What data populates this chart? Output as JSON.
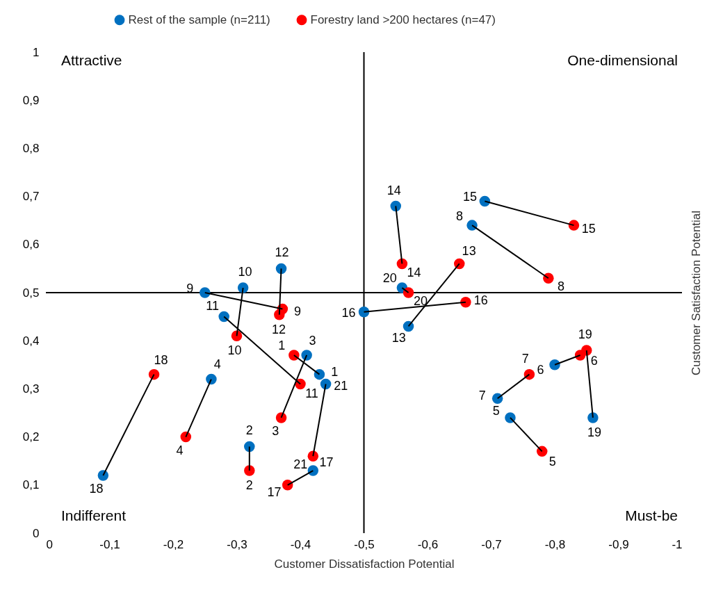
{
  "chart_data": {
    "type": "scatter",
    "xlabel": "Customer Dissatisfaction Potential",
    "ylabel": "Customer Satisfaction Potential",
    "xlim": [
      0,
      -1
    ],
    "ylim": [
      0,
      1
    ],
    "xticks": [
      0,
      {
        "value": -0.1,
        "label": "-0,1"
      },
      {
        "value": -0.2,
        "label": "-0,2"
      },
      {
        "value": -0.3,
        "label": "-0,3"
      },
      {
        "value": -0.4,
        "label": "-0,4"
      },
      {
        "value": -0.5,
        "label": "-0,5"
      },
      {
        "value": -0.6,
        "label": "-0,6"
      },
      {
        "value": -0.7,
        "label": "-0,7"
      },
      {
        "value": -0.8,
        "label": "-0,8"
      },
      {
        "value": -0.9,
        "label": "-0,9"
      },
      -1
    ],
    "yticks": [
      0,
      {
        "value": 0.1,
        "label": "0,1"
      },
      {
        "value": 0.2,
        "label": "0,2"
      },
      {
        "value": 0.3,
        "label": "0,3"
      },
      {
        "value": 0.4,
        "label": "0,4"
      },
      {
        "value": 0.5,
        "label": "0,5"
      },
      {
        "value": 0.6,
        "label": "0,6"
      },
      {
        "value": 0.7,
        "label": "0,7"
      },
      {
        "value": 0.8,
        "label": "0,8"
      },
      {
        "value": 0.9,
        "label": "0,9"
      },
      1
    ],
    "legend": "top",
    "marker": "circle",
    "annotations": [
      "Attractive",
      "One-dimensional",
      "Indifferent",
      "Must-be",
      {
        "text": "1",
        "x": -0.43,
        "y": 0.33
      },
      {
        "text": "2",
        "x": -0.32,
        "y": 0.18
      },
      {
        "text": "3",
        "x": -0.41,
        "y": 0.37
      },
      {
        "text": "4",
        "x": -0.26,
        "y": 0.32
      },
      {
        "text": "5",
        "x": -0.73,
        "y": 0.24
      },
      {
        "text": "6",
        "x": -0.8,
        "y": 0.35
      },
      {
        "text": "7",
        "x": -0.71,
        "y": 0.28
      },
      {
        "text": "8",
        "x": -0.67,
        "y": 0.64
      },
      {
        "text": "9",
        "x": -0.25,
        "y": 0.5
      },
      {
        "text": "10",
        "x": -0.31,
        "y": 0.51
      },
      {
        "text": "11",
        "x": -0.28,
        "y": 0.45
      },
      {
        "text": "12",
        "x": -0.37,
        "y": 0.55
      },
      {
        "text": "13",
        "x": -0.57,
        "y": 0.43
      },
      {
        "text": "14",
        "x": -0.55,
        "y": 0.68
      },
      {
        "text": "15",
        "x": -0.69,
        "y": 0.69
      },
      {
        "text": "16",
        "x": -0.5,
        "y": 0.46
      },
      {
        "text": "17",
        "x": -0.42,
        "y": 0.13
      },
      {
        "text": "18",
        "x": -0.09,
        "y": 0.12
      },
      {
        "text": "19",
        "x": -0.86,
        "y": 0.24
      },
      {
        "text": "20",
        "x": -0.56,
        "y": 0.51
      },
      {
        "text": "21",
        "x": -0.44,
        "y": 0.31
      },
      {
        "text": "1",
        "x": -0.39,
        "y": 0.37
      },
      {
        "text": "2",
        "x": -0.32,
        "y": 0.13
      },
      {
        "text": "3",
        "x": -0.37,
        "y": 0.24
      },
      {
        "text": "4",
        "x": -0.22,
        "y": 0.2
      },
      {
        "text": "5",
        "x": -0.78,
        "y": 0.17
      },
      {
        "text": "6",
        "x": -0.84,
        "y": 0.37
      },
      {
        "text": "7",
        "x": -0.76,
        "y": 0.33
      },
      {
        "text": "8",
        "x": -0.79,
        "y": 0.53
      },
      {
        "text": "9",
        "x": -0.372,
        "y": 0.466
      },
      {
        "text": "10",
        "x": -0.3,
        "y": 0.41
      },
      {
        "text": "11",
        "x": -0.4,
        "y": 0.31
      },
      {
        "text": "12",
        "x": -0.367,
        "y": 0.454
      },
      {
        "text": "13",
        "x": -0.65,
        "y": 0.56
      },
      {
        "text": "14",
        "x": -0.56,
        "y": 0.56
      },
      {
        "text": "15",
        "x": -0.83,
        "y": 0.64
      },
      {
        "text": "16",
        "x": -0.66,
        "y": 0.48
      },
      {
        "text": "17",
        "x": -0.38,
        "y": 0.1
      },
      {
        "text": "18",
        "x": -0.17,
        "y": 0.33
      },
      {
        "text": "19",
        "x": -0.85,
        "y": 0.38
      },
      {
        "text": "20",
        "x": -0.57,
        "y": 0.5
      },
      {
        "text": "21",
        "x": -0.42,
        "y": 0.16
      }
    ],
    "ref_lines": [
      {
        "axis": "x",
        "value": -0.5,
        "color": "#000000"
      },
      {
        "axis": "y",
        "value": 0.5,
        "color": "#000000"
      }
    ],
    "series": [
      {
        "type": "line",
        "marker": "none",
        "color": "#000000",
        "x": [
          -0.43,
          -0.39
        ],
        "values": [
          0.33,
          0.37
        ]
      },
      {
        "type": "line",
        "marker": "none",
        "color": "#000000",
        "x": [
          -0.32,
          -0.32
        ],
        "values": [
          0.18,
          0.13
        ]
      },
      {
        "type": "line",
        "marker": "none",
        "color": "#000000",
        "x": [
          -0.41,
          -0.37
        ],
        "values": [
          0.37,
          0.24
        ]
      },
      {
        "type": "line",
        "marker": "none",
        "color": "#000000",
        "x": [
          -0.26,
          -0.22
        ],
        "values": [
          0.32,
          0.2
        ]
      },
      {
        "type": "line",
        "marker": "none",
        "color": "#000000",
        "x": [
          -0.73,
          -0.78
        ],
        "values": [
          0.24,
          0.17
        ]
      },
      {
        "type": "line",
        "marker": "none",
        "color": "#000000",
        "x": [
          -0.8,
          -0.84
        ],
        "values": [
          0.35,
          0.37
        ]
      },
      {
        "type": "line",
        "marker": "none",
        "color": "#000000",
        "x": [
          -0.71,
          -0.76
        ],
        "values": [
          0.28,
          0.33
        ]
      },
      {
        "type": "line",
        "marker": "none",
        "color": "#000000",
        "x": [
          -0.67,
          -0.79
        ],
        "values": [
          0.64,
          0.53
        ]
      },
      {
        "type": "line",
        "marker": "none",
        "color": "#000000",
        "x": [
          -0.25,
          -0.372
        ],
        "values": [
          0.5,
          0.466
        ]
      },
      {
        "type": "line",
        "marker": "none",
        "color": "#000000",
        "x": [
          -0.31,
          -0.3
        ],
        "values": [
          0.51,
          0.41
        ]
      },
      {
        "type": "line",
        "marker": "none",
        "color": "#000000",
        "x": [
          -0.28,
          -0.4
        ],
        "values": [
          0.45,
          0.31
        ]
      },
      {
        "type": "line",
        "marker": "none",
        "color": "#000000",
        "x": [
          -0.37,
          -0.367
        ],
        "values": [
          0.55,
          0.454
        ]
      },
      {
        "type": "line",
        "marker": "none",
        "color": "#000000",
        "x": [
          -0.57,
          -0.65
        ],
        "values": [
          0.43,
          0.56
        ]
      },
      {
        "type": "line",
        "marker": "none",
        "color": "#000000",
        "x": [
          -0.55,
          -0.56
        ],
        "values": [
          0.68,
          0.56
        ]
      },
      {
        "type": "line",
        "marker": "none",
        "color": "#000000",
        "x": [
          -0.69,
          -0.83
        ],
        "values": [
          0.69,
          0.64
        ]
      },
      {
        "type": "line",
        "marker": "none",
        "color": "#000000",
        "x": [
          -0.5,
          -0.66
        ],
        "values": [
          0.46,
          0.48
        ]
      },
      {
        "type": "line",
        "marker": "none",
        "color": "#000000",
        "x": [
          -0.42,
          -0.38
        ],
        "values": [
          0.13,
          0.1
        ]
      },
      {
        "type": "line",
        "marker": "none",
        "color": "#000000",
        "x": [
          -0.09,
          -0.17
        ],
        "values": [
          0.12,
          0.33
        ]
      },
      {
        "type": "line",
        "marker": "none",
        "color": "#000000",
        "x": [
          -0.86,
          -0.85
        ],
        "values": [
          0.24,
          0.38
        ]
      },
      {
        "type": "line",
        "marker": "none",
        "color": "#000000",
        "x": [
          -0.56,
          -0.57
        ],
        "values": [
          0.51,
          0.5
        ]
      },
      {
        "type": "line",
        "marker": "none",
        "color": "#000000",
        "x": [
          -0.44,
          -0.42
        ],
        "values": [
          0.31,
          0.16
        ]
      },
      {
        "type": "scatter",
        "name": "Rest of the sample (n=211)",
        "color": "#0070c0",
        "x": [
          -0.43,
          -0.32,
          -0.41,
          -0.26,
          -0.73,
          -0.8,
          -0.71,
          -0.67,
          -0.25,
          -0.31,
          -0.28,
          -0.37,
          -0.57,
          -0.55,
          -0.69,
          -0.5,
          -0.42,
          -0.09,
          -0.86,
          -0.56,
          -0.44
        ],
        "values": [
          0.33,
          0.18,
          0.37,
          0.32,
          0.24,
          0.35,
          0.28,
          0.64,
          0.5,
          0.51,
          0.45,
          0.55,
          0.43,
          0.68,
          0.69,
          0.46,
          0.13,
          0.12,
          0.24,
          0.51,
          0.31
        ]
      },
      {
        "type": "scatter",
        "name": "Forestry land >200 hectares (n=47)",
        "color": "#ff0000",
        "x": [
          -0.39,
          -0.32,
          -0.37,
          -0.22,
          -0.78,
          -0.84,
          -0.76,
          -0.79,
          -0.372,
          -0.3,
          -0.4,
          -0.367,
          -0.65,
          -0.56,
          -0.83,
          -0.66,
          -0.38,
          -0.17,
          -0.85,
          -0.57,
          -0.42
        ],
        "values": [
          0.37,
          0.13,
          0.24,
          0.2,
          0.17,
          0.37,
          0.33,
          0.53,
          0.466,
          0.41,
          0.31,
          0.454,
          0.56,
          0.56,
          0.64,
          0.48,
          0.1,
          0.33,
          0.38,
          0.5,
          0.16
        ]
      }
    ]
  }
}
